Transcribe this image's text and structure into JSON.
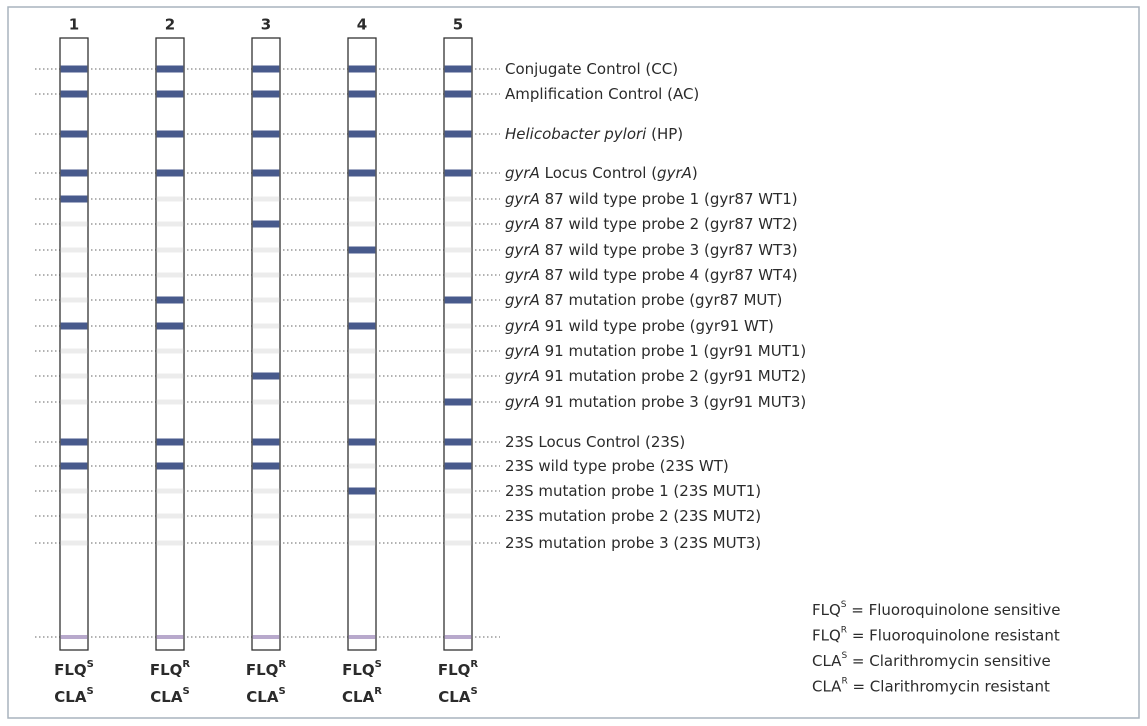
{
  "strips": [
    {
      "number": "1",
      "bands": [
        true,
        true,
        true,
        true,
        true,
        false,
        false,
        false,
        false,
        true,
        false,
        false,
        false,
        true,
        true,
        false,
        false,
        false
      ],
      "result": [
        {
          "base": "FLQ",
          "sup": "S"
        },
        {
          "base": "CLA",
          "sup": "S"
        }
      ]
    },
    {
      "number": "2",
      "bands": [
        true,
        true,
        true,
        true,
        false,
        false,
        false,
        false,
        true,
        true,
        false,
        false,
        false,
        true,
        true,
        false,
        false,
        false
      ],
      "result": [
        {
          "base": "FLQ",
          "sup": "R"
        },
        {
          "base": "CLA",
          "sup": "S"
        }
      ]
    },
    {
      "number": "3",
      "bands": [
        true,
        true,
        true,
        true,
        false,
        true,
        false,
        false,
        false,
        false,
        false,
        true,
        false,
        true,
        true,
        false,
        false,
        false
      ],
      "result": [
        {
          "base": "FLQ",
          "sup": "R"
        },
        {
          "base": "CLA",
          "sup": "S"
        }
      ]
    },
    {
      "number": "4",
      "bands": [
        true,
        true,
        true,
        true,
        false,
        false,
        true,
        false,
        false,
        true,
        false,
        false,
        false,
        true,
        false,
        true,
        false,
        false
      ],
      "result": [
        {
          "base": "FLQ",
          "sup": "S"
        },
        {
          "base": "CLA",
          "sup": "R"
        }
      ]
    },
    {
      "number": "5",
      "bands": [
        true,
        true,
        true,
        true,
        false,
        false,
        false,
        false,
        true,
        false,
        false,
        false,
        true,
        true,
        true,
        false,
        false,
        false
      ],
      "result": [
        {
          "base": "FLQ",
          "sup": "R"
        },
        {
          "base": "CLA",
          "sup": "S"
        }
      ]
    }
  ],
  "rows": [
    {
      "parts": [
        {
          "text": "Conjugate Control (CC)"
        }
      ]
    },
    {
      "parts": [
        {
          "text": "Amplification Control (AC)"
        }
      ]
    },
    {
      "parts": [
        {
          "text": "Helicobacter pylori",
          "italic": true
        },
        {
          "text": " (HP)"
        }
      ]
    },
    {
      "parts": [
        {
          "text": "gyrA",
          "italic": true
        },
        {
          "text": " Locus Control ("
        },
        {
          "text": "gyrA",
          "italic": true
        },
        {
          "text": ")"
        }
      ]
    },
    {
      "parts": [
        {
          "text": "gyrA",
          "italic": true
        },
        {
          "text": " 87 wild type probe 1 (gyr87 WT1)"
        }
      ]
    },
    {
      "parts": [
        {
          "text": "gyrA",
          "italic": true
        },
        {
          "text": " 87 wild type probe 2 (gyr87 WT2)"
        }
      ]
    },
    {
      "parts": [
        {
          "text": "gyrA",
          "italic": true
        },
        {
          "text": " 87 wild type probe 3 (gyr87 WT3)"
        }
      ]
    },
    {
      "parts": [
        {
          "text": "gyrA",
          "italic": true
        },
        {
          "text": " 87 wild type probe 4 (gyr87 WT4)"
        }
      ]
    },
    {
      "parts": [
        {
          "text": "gyrA",
          "italic": true
        },
        {
          "text": " 87 mutation probe (gyr87 MUT)"
        }
      ]
    },
    {
      "parts": [
        {
          "text": "gyrA",
          "italic": true
        },
        {
          "text": " 91 wild type probe (gyr91 WT)"
        }
      ]
    },
    {
      "parts": [
        {
          "text": "gyrA",
          "italic": true
        },
        {
          "text": " 91 mutation probe 1 (gyr91 MUT1)"
        }
      ]
    },
    {
      "parts": [
        {
          "text": "gyrA",
          "italic": true
        },
        {
          "text": " 91 mutation probe 2 (gyr91 MUT2)"
        }
      ]
    },
    {
      "parts": [
        {
          "text": "gyrA",
          "italic": true
        },
        {
          "text": " 91 mutation probe 3 (gyr91 MUT3)"
        }
      ]
    },
    {
      "parts": [
        {
          "text": "23S Locus Control (23S)"
        }
      ]
    },
    {
      "parts": [
        {
          "text": "23S wild type probe (23S WT)"
        }
      ]
    },
    {
      "parts": [
        {
          "text": "23S mutation probe 1 (23S MUT1)"
        }
      ]
    },
    {
      "parts": [
        {
          "text": "23S mutation probe 2 (23S MUT2)"
        }
      ]
    },
    {
      "parts": [
        {
          "text": "23S mutation probe 3 (23S MUT3)"
        }
      ]
    }
  ],
  "legend": [
    {
      "base": "FLQ",
      "sup": "S",
      "text": " = Fluoroquinolone sensitive"
    },
    {
      "base": "FLQ",
      "sup": "R",
      "text": " = Fluoroquinolone resistant"
    },
    {
      "base": "CLA",
      "sup": "S",
      "text": " = Clarithromycin sensitive"
    },
    {
      "base": "CLA",
      "sup": "R",
      "text": " = Clarithromycin resistant"
    }
  ]
}
